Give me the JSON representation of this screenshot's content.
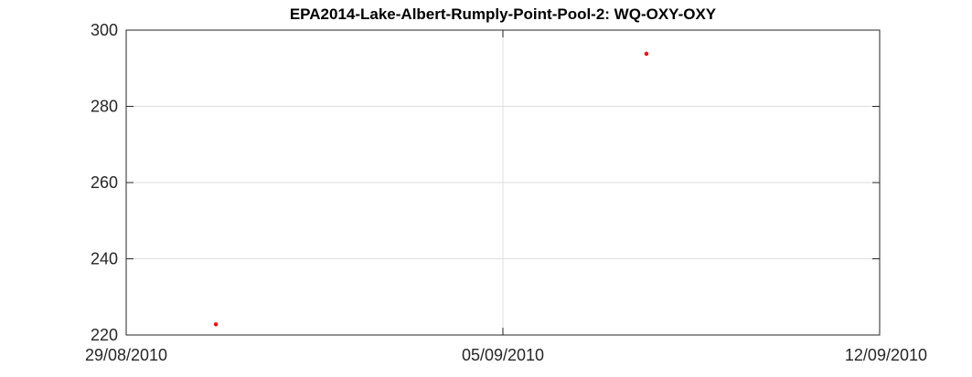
{
  "chart_data": {
    "type": "scatter",
    "title": "EPA2014-Lake-Albert-Rumply-Point-Pool-2: WQ-OXY-OXY",
    "xlabel": "",
    "ylabel": "",
    "x_axis_type": "date",
    "xlim": [
      "2010-08-29",
      "2010-09-12"
    ],
    "ylim": [
      220,
      300
    ],
    "x_ticks": [
      "29/08/2010",
      "05/09/2010",
      "12/09/2010"
    ],
    "y_ticks": [
      220,
      240,
      260,
      280,
      300
    ],
    "grid": true,
    "marker_color": "#ff0000",
    "series": [
      {
        "points": [
          {
            "x": "2010-08-30T16:00",
            "y": 222.8
          },
          {
            "x": "2010-09-07T16:00",
            "y": 293.8
          }
        ]
      }
    ]
  }
}
